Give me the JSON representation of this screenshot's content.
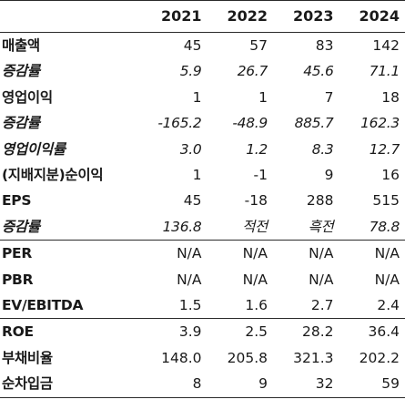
{
  "table": {
    "header": {
      "label": "",
      "years": [
        "2021",
        "2022",
        "2023",
        "2024"
      ]
    },
    "rows": [
      {
        "label": "매출액",
        "values": [
          "45",
          "57",
          "83",
          "142"
        ],
        "italic": false,
        "sep": false
      },
      {
        "label": "증감률",
        "values": [
          "5.9",
          "26.7",
          "45.6",
          "71.1"
        ],
        "italic": true,
        "sep": false
      },
      {
        "label": "영업이익",
        "values": [
          "1",
          "1",
          "7",
          "18"
        ],
        "italic": false,
        "sep": false
      },
      {
        "label": "증감률",
        "values": [
          "-165.2",
          "-48.9",
          "885.7",
          "162.3"
        ],
        "italic": true,
        "sep": false
      },
      {
        "label": "영업이익률",
        "values": [
          "3.0",
          "1.2",
          "8.3",
          "12.7"
        ],
        "italic": true,
        "sep": false
      },
      {
        "label": "(지배지분)순이익",
        "values": [
          "1",
          "-1",
          "9",
          "16"
        ],
        "italic": false,
        "sep": false
      },
      {
        "label": "EPS",
        "values": [
          "45",
          "-18",
          "288",
          "515"
        ],
        "italic": false,
        "sep": false
      },
      {
        "label": "증감률",
        "values": [
          "136.8",
          "적전",
          "흑전",
          "78.8"
        ],
        "italic": true,
        "sep": false
      },
      {
        "label": "PER",
        "values": [
          "N/A",
          "N/A",
          "N/A",
          "N/A"
        ],
        "italic": false,
        "sep": true
      },
      {
        "label": "PBR",
        "values": [
          "N/A",
          "N/A",
          "N/A",
          "N/A"
        ],
        "italic": false,
        "sep": false
      },
      {
        "label": "EV/EBITDA",
        "values": [
          "1.5",
          "1.6",
          "2.7",
          "2.4"
        ],
        "italic": false,
        "sep": false
      },
      {
        "label": "ROE",
        "values": [
          "3.9",
          "2.5",
          "28.2",
          "36.4"
        ],
        "italic": false,
        "sep": true
      },
      {
        "label": "부채비율",
        "values": [
          "148.0",
          "205.8",
          "321.3",
          "202.2"
        ],
        "italic": false,
        "sep": false
      },
      {
        "label": "순차입금",
        "values": [
          "8",
          "9",
          "32",
          "59"
        ],
        "italic": false,
        "sep": false
      }
    ]
  }
}
